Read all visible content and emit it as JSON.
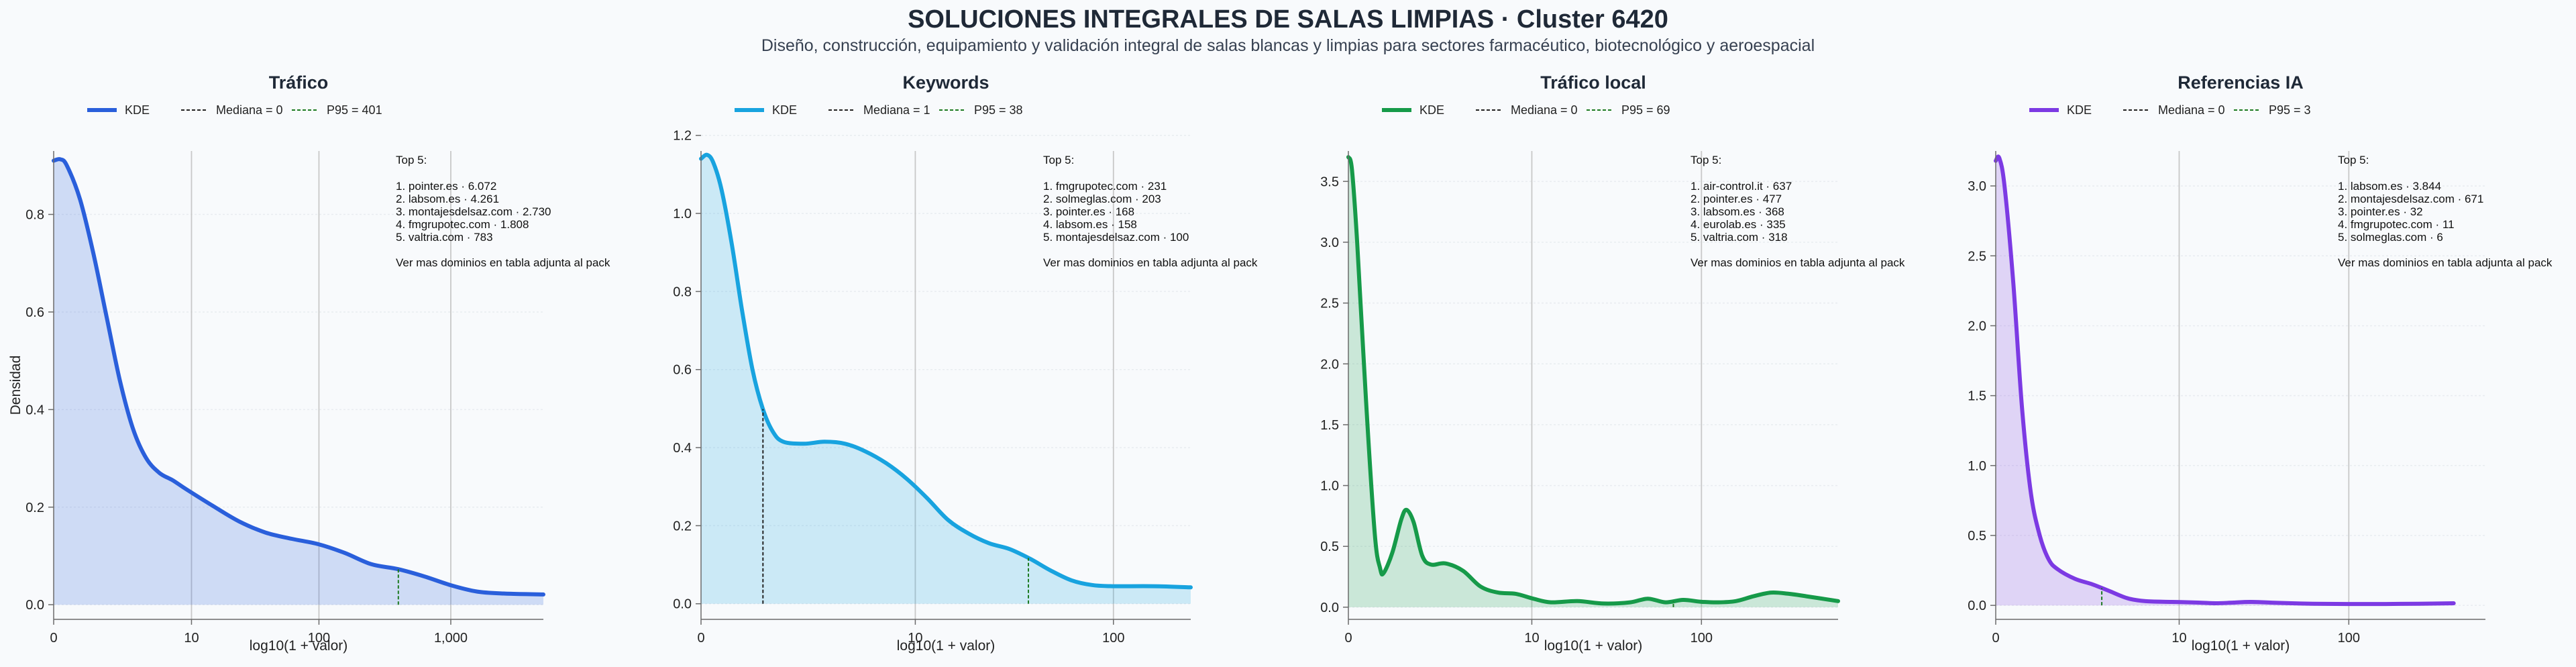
{
  "title": "SOLUCIONES INTEGRALES DE SALAS LIMPIAS · Cluster 6420",
  "subtitle": "Diseño, construcción, equipamiento y validación integral de salas blancas y limpias para sectores farmacéutico, biotecnológico y aeroespacial",
  "colors": {
    "trafico": "#2a5fdb",
    "keywords": "#18a3df",
    "local": "#169a49",
    "ia": "#7c3ae3",
    "p95": "#1c7a20",
    "median": "#222222"
  },
  "chart_data": [
    {
      "type": "area",
      "title": "Tráfico",
      "xlabel": "log10(1 + valor)",
      "ylabel": "Densidad",
      "xscale": "log10(1+x)",
      "xlim": [
        0,
        3.7
      ],
      "ylim": [
        -0.03,
        0.93
      ],
      "xticks": [
        "0",
        "10",
        "100",
        "1,000"
      ],
      "yticks": [
        "0.0",
        "0.2",
        "0.4",
        "0.6",
        "0.8"
      ],
      "legend": [
        "KDE",
        "Mediana = 0",
        "P95 = 401"
      ],
      "median": 0,
      "p95": 401,
      "kde": [
        [
          0,
          0.91
        ],
        [
          0.05,
          0.913
        ],
        [
          0.1,
          0.9
        ],
        [
          0.2,
          0.83
        ],
        [
          0.3,
          0.72
        ],
        [
          0.4,
          0.59
        ],
        [
          0.5,
          0.46
        ],
        [
          0.6,
          0.36
        ],
        [
          0.7,
          0.3
        ],
        [
          0.8,
          0.27
        ],
        [
          0.9,
          0.255
        ],
        [
          1.0,
          0.237
        ],
        [
          1.2,
          0.203
        ],
        [
          1.4,
          0.171
        ],
        [
          1.6,
          0.148
        ],
        [
          1.8,
          0.135
        ],
        [
          2.0,
          0.124
        ],
        [
          2.2,
          0.106
        ],
        [
          2.4,
          0.083
        ],
        [
          2.6,
          0.073
        ],
        [
          2.8,
          0.058
        ],
        [
          3.0,
          0.04
        ],
        [
          3.2,
          0.027
        ],
        [
          3.4,
          0.023
        ],
        [
          3.7,
          0.021
        ]
      ],
      "top5_title": "Top 5:",
      "top5": [
        "1. pointer.es · 6.072",
        "2. labsom.es · 4.261",
        "3. montajesdelsaz.com · 2.730",
        "4. fmgrupotec.com · 1.808",
        "5. valtria.com · 783"
      ],
      "footnote": "Ver mas dominios en tabla adjunta al pack"
    },
    {
      "type": "area",
      "title": "Keywords",
      "xlabel": "log10(1 + valor)",
      "xscale": "log10(1+x)",
      "xlim": [
        0,
        2.38
      ],
      "ylim": [
        -0.04,
        1.16
      ],
      "xticks": [
        "0",
        "10",
        "100"
      ],
      "yticks": [
        "0.0",
        "0.2",
        "0.4",
        "0.6",
        "0.8",
        "1.0",
        "1.2"
      ],
      "legend": [
        "KDE",
        "Mediana = 1",
        "P95 = 38"
      ],
      "median": 1,
      "p95": 38,
      "kde": [
        [
          0,
          1.14
        ],
        [
          0.03,
          1.15
        ],
        [
          0.06,
          1.13
        ],
        [
          0.1,
          1.06
        ],
        [
          0.15,
          0.92
        ],
        [
          0.2,
          0.75
        ],
        [
          0.25,
          0.6
        ],
        [
          0.3,
          0.5
        ],
        [
          0.35,
          0.44
        ],
        [
          0.4,
          0.415
        ],
        [
          0.5,
          0.41
        ],
        [
          0.6,
          0.415
        ],
        [
          0.7,
          0.41
        ],
        [
          0.8,
          0.39
        ],
        [
          0.9,
          0.36
        ],
        [
          1.0,
          0.32
        ],
        [
          1.1,
          0.27
        ],
        [
          1.2,
          0.215
        ],
        [
          1.3,
          0.18
        ],
        [
          1.4,
          0.155
        ],
        [
          1.5,
          0.14
        ],
        [
          1.6,
          0.115
        ],
        [
          1.7,
          0.085
        ],
        [
          1.8,
          0.06
        ],
        [
          1.9,
          0.048
        ],
        [
          2.0,
          0.045
        ],
        [
          2.2,
          0.045
        ],
        [
          2.38,
          0.042
        ]
      ],
      "top5_title": "Top 5:",
      "top5": [
        "1. fmgrupotec.com · 231",
        "2. solmeglas.com · 203",
        "3. pointer.es · 168",
        "4. labsom.es · 158",
        "5. montajesdelsaz.com · 100"
      ],
      "footnote": "Ver mas dominios en tabla adjunta al pack"
    },
    {
      "type": "area",
      "title": "Tráfico local",
      "xlabel": "log10(1 + valor)",
      "xscale": "log10(1+x)",
      "xlim": [
        0,
        2.78
      ],
      "ylim": [
        -0.1,
        3.75
      ],
      "xticks": [
        "0",
        "10",
        "100"
      ],
      "yticks": [
        "0.0",
        "0.5",
        "1.0",
        "1.5",
        "2.0",
        "2.5",
        "3.0",
        "3.5"
      ],
      "legend": [
        "KDE",
        "Mediana = 0",
        "P95 = 69"
      ],
      "median": 0,
      "p95": 69,
      "kde": [
        [
          0,
          3.7
        ],
        [
          0.02,
          3.6
        ],
        [
          0.05,
          3.0
        ],
        [
          0.1,
          1.7
        ],
        [
          0.15,
          0.6
        ],
        [
          0.18,
          0.32
        ],
        [
          0.2,
          0.28
        ],
        [
          0.25,
          0.45
        ],
        [
          0.3,
          0.72
        ],
        [
          0.33,
          0.8
        ],
        [
          0.37,
          0.7
        ],
        [
          0.42,
          0.42
        ],
        [
          0.47,
          0.35
        ],
        [
          0.55,
          0.36
        ],
        [
          0.65,
          0.3
        ],
        [
          0.75,
          0.17
        ],
        [
          0.85,
          0.12
        ],
        [
          0.95,
          0.11
        ],
        [
          1.05,
          0.07
        ],
        [
          1.15,
          0.04
        ],
        [
          1.3,
          0.05
        ],
        [
          1.45,
          0.03
        ],
        [
          1.6,
          0.04
        ],
        [
          1.7,
          0.07
        ],
        [
          1.8,
          0.04
        ],
        [
          1.9,
          0.06
        ],
        [
          2.0,
          0.045
        ],
        [
          2.1,
          0.04
        ],
        [
          2.2,
          0.05
        ],
        [
          2.3,
          0.09
        ],
        [
          2.4,
          0.12
        ],
        [
          2.5,
          0.11
        ],
        [
          2.6,
          0.09
        ],
        [
          2.78,
          0.05
        ]
      ],
      "top5_title": "Top 5:",
      "top5": [
        "1. air-control.it · 637",
        "2. pointer.es · 477",
        "3. labsom.es · 368",
        "4. eurolab.es · 335",
        "5. valtria.com · 318"
      ],
      "footnote": "Ver mas dominios en tabla adjunta al pack"
    },
    {
      "type": "area",
      "title": "Referencias IA",
      "xlabel": "log10(1 + valor)",
      "xscale": "log10(1+x)",
      "xlim": [
        0,
        2.78
      ],
      "ylim": [
        -0.1,
        3.25
      ],
      "xticks": [
        "0",
        "10",
        "100"
      ],
      "yticks": [
        "0.0",
        "0.5",
        "1.0",
        "1.5",
        "2.0",
        "2.5",
        "3.0"
      ],
      "legend": [
        "KDE",
        "Mediana = 0",
        "P95 = 3"
      ],
      "median": 0,
      "p95": 3,
      "kde": [
        [
          0,
          3.18
        ],
        [
          0.02,
          3.2
        ],
        [
          0.05,
          3.0
        ],
        [
          0.1,
          2.3
        ],
        [
          0.15,
          1.4
        ],
        [
          0.2,
          0.8
        ],
        [
          0.25,
          0.5
        ],
        [
          0.3,
          0.33
        ],
        [
          0.35,
          0.26
        ],
        [
          0.45,
          0.19
        ],
        [
          0.55,
          0.15
        ],
        [
          0.65,
          0.1
        ],
        [
          0.75,
          0.05
        ],
        [
          0.85,
          0.03
        ],
        [
          1.0,
          0.025
        ],
        [
          1.15,
          0.02
        ],
        [
          1.25,
          0.015
        ],
        [
          1.35,
          0.02
        ],
        [
          1.45,
          0.025
        ],
        [
          1.6,
          0.018
        ],
        [
          1.8,
          0.012
        ],
        [
          2.0,
          0.01
        ],
        [
          2.2,
          0.01
        ],
        [
          2.4,
          0.012
        ],
        [
          2.6,
          0.015
        ]
      ],
      "top5_title": "Top 5:",
      "top5": [
        "1. labsom.es · 3.844",
        "2. montajesdelsaz.com · 671",
        "3. pointer.es · 32",
        "4. fmgrupotec.com · 11",
        "5. solmeglas.com · 6"
      ],
      "footnote": "Ver mas dominios en tabla adjunta al pack"
    }
  ]
}
